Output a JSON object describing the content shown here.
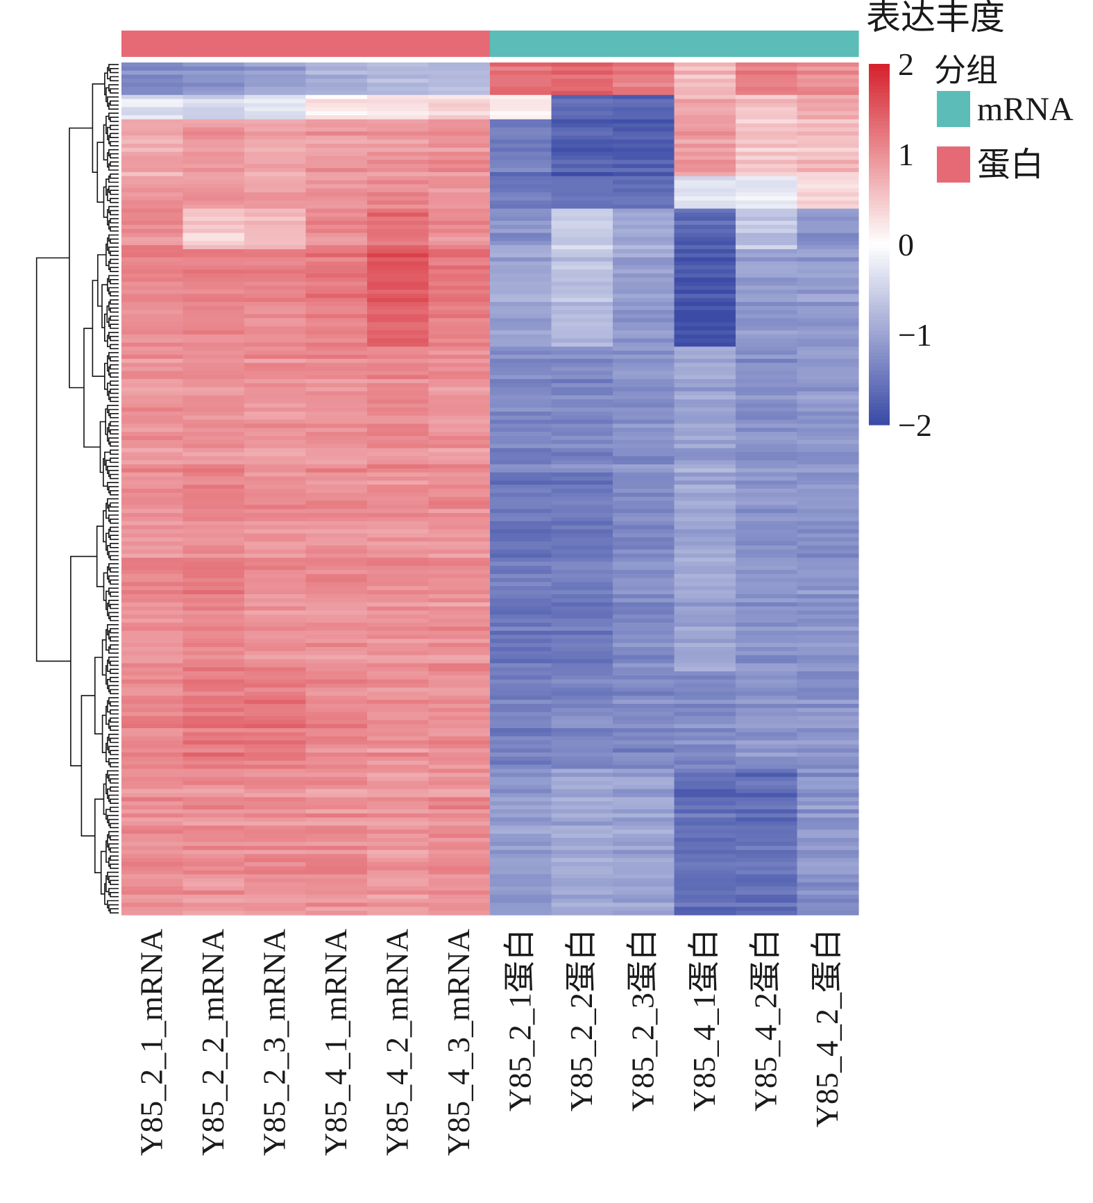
{
  "chart_data": {
    "type": "heatmap",
    "title": "",
    "legend_title": "表达丰度",
    "group_legend_title": "分组",
    "colorscale": {
      "min": -2,
      "max": 2,
      "ticks": [
        2,
        1,
        0,
        -1,
        -2
      ],
      "tick_labels": [
        "2",
        "1",
        "0",
        "−1",
        "−2"
      ],
      "colors": {
        "low": "#3b4ba6",
        "mid": "#ffffff",
        "high": "#d6232e"
      }
    },
    "groups": [
      {
        "name": "mRNA",
        "color": "#5bbcb8"
      },
      {
        "name": "蛋白",
        "color": "#e66a76"
      }
    ],
    "columns": [
      {
        "label": "Y85_2_1_mRNA",
        "group": "蛋白"
      },
      {
        "label": "Y85_2_2_mRNA",
        "group": "蛋白"
      },
      {
        "label": "Y85_2_3_mRNA",
        "group": "蛋白"
      },
      {
        "label": "Y85_4_1_mRNA",
        "group": "蛋白"
      },
      {
        "label": "Y85_4_2_mRNA",
        "group": "蛋白"
      },
      {
        "label": "Y85_4_3_mRNA",
        "group": "蛋白"
      },
      {
        "label": "Y85_2_1蛋白",
        "group": "mRNA"
      },
      {
        "label": "Y85_2_2蛋白",
        "group": "mRNA"
      },
      {
        "label": "Y85_2_3蛋白",
        "group": "mRNA"
      },
      {
        "label": "Y85_4_1蛋白",
        "group": "mRNA"
      },
      {
        "label": "Y85_4_2蛋白",
        "group": "mRNA"
      },
      {
        "label": "Y85_4_2_蛋白",
        "group": "mRNA"
      }
    ],
    "row_bands": [
      {
        "rows": 8,
        "values": [
          -1.3,
          -1.2,
          -1.1,
          -0.9,
          -0.8,
          -0.8,
          1.3,
          1.4,
          1.2,
          0.6,
          1.2,
          1.0
        ]
      },
      {
        "rows": 6,
        "values": [
          -0.3,
          -0.5,
          -0.3,
          0.2,
          0.3,
          0.4,
          0.2,
          -1.6,
          -1.7,
          0.8,
          0.6,
          0.8
        ]
      },
      {
        "rows": 14,
        "values": [
          0.8,
          0.9,
          0.8,
          0.9,
          0.9,
          1.0,
          -1.5,
          -1.8,
          -1.8,
          0.9,
          0.5,
          0.6
        ]
      },
      {
        "rows": 8,
        "values": [
          1.0,
          1.0,
          0.9,
          1.0,
          1.1,
          1.0,
          -1.4,
          -1.5,
          -1.6,
          -0.3,
          -0.2,
          0.4
        ]
      },
      {
        "rows": 10,
        "values": [
          1.0,
          0.4,
          0.6,
          1.0,
          1.3,
          1.0,
          -1.2,
          -0.6,
          -1.0,
          -1.7,
          -0.7,
          -1.2
        ]
      },
      {
        "rows": 24,
        "values": [
          1.1,
          1.1,
          1.1,
          1.2,
          1.5,
          1.2,
          -1.0,
          -0.7,
          -1.1,
          -1.9,
          -1.1,
          -1.1
        ]
      },
      {
        "rows": 30,
        "values": [
          1.0,
          1.0,
          1.0,
          1.0,
          1.1,
          1.0,
          -1.3,
          -1.3,
          -1.2,
          -1.0,
          -1.2,
          -1.1
        ]
      },
      {
        "rows": 50,
        "values": [
          1.0,
          1.1,
          1.0,
          1.0,
          1.0,
          1.0,
          -1.5,
          -1.5,
          -1.3,
          -1.0,
          -1.2,
          -1.2
        ]
      },
      {
        "rows": 24,
        "values": [
          1.1,
          1.2,
          1.2,
          1.1,
          1.0,
          1.0,
          -1.4,
          -1.3,
          -1.3,
          -1.3,
          -1.2,
          -1.2
        ]
      },
      {
        "rows": 36,
        "values": [
          1.0,
          1.0,
          1.0,
          1.0,
          0.9,
          1.0,
          -1.1,
          -1.0,
          -1.0,
          -1.6,
          -1.6,
          -1.2
        ]
      }
    ],
    "row_noise": 0.3,
    "n_rows": 210
  }
}
